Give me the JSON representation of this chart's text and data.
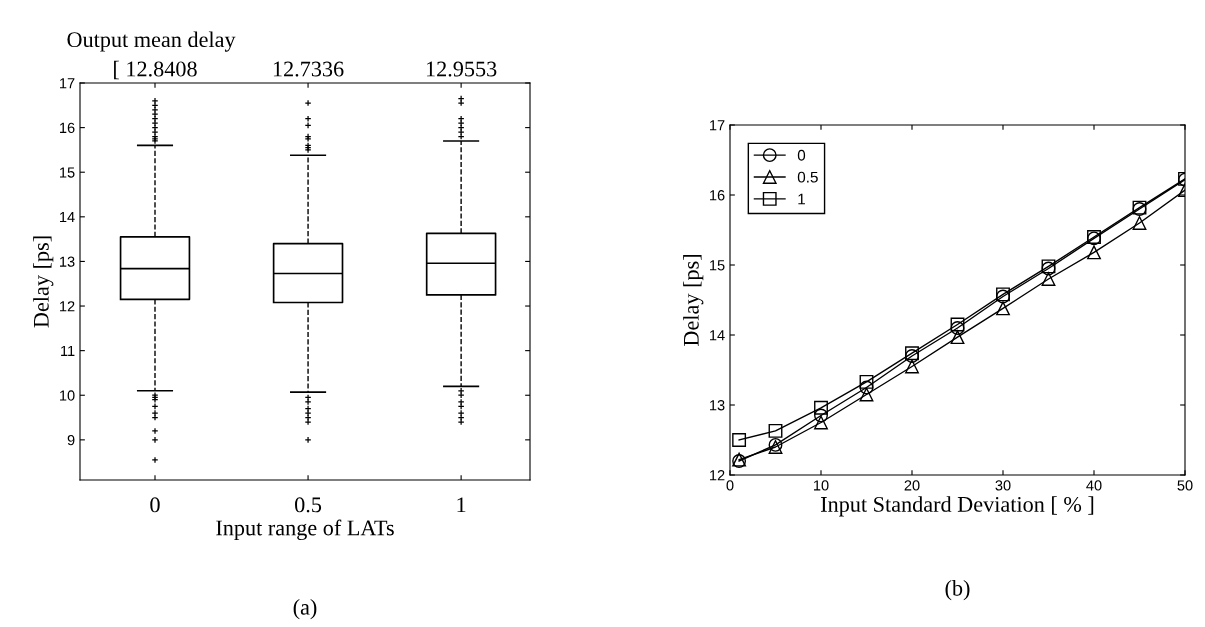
{
  "chart_data": [
    {
      "type": "box",
      "title": "Output mean delay",
      "xlabel": "Input range of LATs",
      "ylabel": "Delay [ps]",
      "categories": [
        "0",
        "0.5",
        "1"
      ],
      "boxes": [
        {
          "low": 10.1,
          "q1": 12.15,
          "median": 12.84,
          "q3": 13.55,
          "high": 15.6,
          "outliers": [
            15.7,
            15.75,
            15.8,
            15.9,
            16.0,
            16.1,
            16.2,
            16.3,
            16.4,
            16.5,
            16.6,
            10.0,
            9.95,
            9.9,
            9.75,
            9.6,
            9.5,
            9.2,
            9.0,
            8.55
          ]
        },
        {
          "low": 10.07,
          "q1": 12.08,
          "median": 12.73,
          "q3": 13.4,
          "high": 15.38,
          "outliers": [
            15.5,
            15.55,
            15.6,
            15.75,
            15.8,
            16.05,
            16.2,
            16.55,
            9.95,
            9.85,
            9.7,
            9.6,
            9.5,
            9.4,
            9.0
          ]
        },
        {
          "low": 10.2,
          "q1": 12.25,
          "median": 12.96,
          "q3": 13.63,
          "high": 15.7,
          "outliers": [
            15.8,
            15.9,
            16.0,
            16.1,
            16.2,
            16.55,
            16.65,
            10.1,
            10.0,
            9.85,
            9.75,
            9.6,
            9.5,
            9.4
          ]
        }
      ],
      "ylim": [
        8.1,
        17
      ],
      "yticks": [
        9,
        10,
        11,
        12,
        13,
        14,
        15,
        16,
        17
      ],
      "line_style": "dashed",
      "marker": "cross",
      "annotations": [
        "[ 12.8408",
        "12.7336",
        "12.9553",
        "(a)"
      ]
    },
    {
      "type": "line",
      "xlabel": "Input Standard Deviation [ % ]",
      "ylabel": "Delay [ps]",
      "x": [
        1,
        5,
        10,
        15,
        20,
        25,
        30,
        35,
        40,
        45,
        50
      ],
      "series": [
        {
          "name": "0",
          "color": "#000000",
          "marker": "circle",
          "values": [
            12.2,
            12.43,
            12.85,
            13.25,
            13.7,
            14.1,
            14.55,
            14.95,
            15.38,
            15.8,
            16.22
          ]
        },
        {
          "name": "0.5",
          "color": "#000000",
          "marker": "triangle",
          "values": [
            12.22,
            12.4,
            12.75,
            13.15,
            13.55,
            13.97,
            14.38,
            14.8,
            15.18,
            15.6,
            16.07
          ]
        },
        {
          "name": "1",
          "color": "#000000",
          "marker": "square",
          "values": [
            12.5,
            12.63,
            12.96,
            13.33,
            13.74,
            14.15,
            14.58,
            14.98,
            15.4,
            15.82,
            16.23
          ]
        }
      ],
      "xlim": [
        0,
        50
      ],
      "xticks": [
        0,
        10,
        20,
        30,
        40,
        50
      ],
      "ylim": [
        12,
        17
      ],
      "yticks": [
        12,
        13,
        14,
        15,
        16,
        17
      ],
      "legend": "top left",
      "grid": false,
      "annotations": [
        "(b)"
      ]
    }
  ]
}
